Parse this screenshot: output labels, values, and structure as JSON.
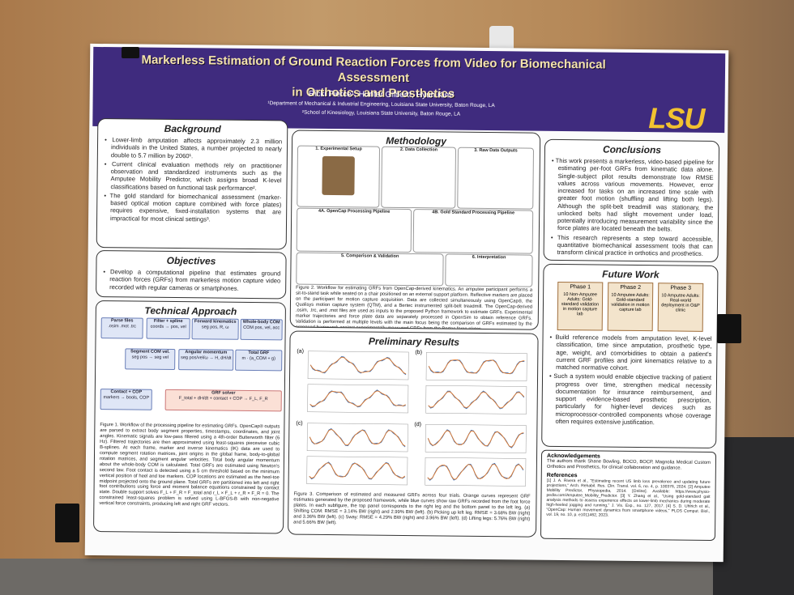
{
  "header": {
    "title_line1": "Markerless Estimation of Ground Reaction Forces from Video for Biomechanical Assessment",
    "title_line2": "in Orthotics and Prosthetics",
    "authors": "Ricki Pierce¹, Hunter Gilbert¹, Hyun Kim²",
    "affiliation1": "¹Department of Mechanical & Industrial Engineering, Louisiana State University, Baton Rouge, LA",
    "affiliation2": "²School of Kinesiology, Louisiana State University, Baton Rouge, LA",
    "logo": "LSU"
  },
  "background": {
    "heading": "Background",
    "bullets": [
      "Lower-limb amputation affects approximately 2.3 million individuals in the United States, a number projected to nearly double to 5.7 million by 2060¹.",
      "Current clinical evaluation methods rely on practitioner observation and standardized instruments such as the Amputee Mobility Predictor, which assigns broad K-level classifications based on functional task performance².",
      "The gold standard for biomechanical assessment (marker-based optical motion capture combined with force plates) requires expensive, fixed-installation systems that are impractical for most clinical settings³."
    ]
  },
  "objectives": {
    "heading": "Objectives",
    "bullets": [
      "Develop a computational pipeline that estimates ground reaction forces (GRFs) from markerless motion capture video recorded with regular cameras or smartphones."
    ]
  },
  "technical_approach": {
    "heading": "Technical Approach",
    "flow": [
      [
        "Parse files",
        ".osim .mot .trc"
      ],
      [
        "Filter + spline",
        "coords → pos, vel"
      ],
      [
        "Forward kinematics",
        "seg pos, R, ω"
      ],
      [
        "Whole-body COM",
        "COM pos, vel, acc"
      ],
      [
        "Segment COM vel.",
        "seg pos → seg vel"
      ],
      [
        "Angular momentum",
        "seg pos/vel/ω → H, dH/dt"
      ],
      [
        "Total GRF",
        "m · (a_COM + g)"
      ],
      [
        "Contact + COP",
        "markers → bools, COP"
      ],
      [
        "GRF solver",
        "F_total + dH/dt + contact + COP → F_L, F_R"
      ]
    ],
    "caption": "Figure 1. Workflow of the processing pipeline for estimating GRFs. OpenCap® outputs are parsed to extract body segment properties, timestamps, coordinates, and joint angles. Kinematic signals are low-pass filtered using a 4th-order Butterworth filter (6 Hz). Filtered trajectories are then approximated using least-squares piecewise cubic B-splines. At each frame, marker and inverse kinematics (IK) data are used to compute segment rotation matrices, joint origins in the global frame, body-to-global rotation matrices, and segment angular velocities. Total body angular momentum about the whole-body COM is calculated. Total GRFs are estimated using Newton's second law. Foot contact is detected using a 5 cm threshold based on the minimum vertical position of heel and toe markers. COP locations are estimated as the heel-toe midpoint projected onto the ground plane. Total GRFs are partitioned into left and right foot contributions using force and moment balance equations constrained by contact state. Double support solves F_L + F_R = F_total and r_L × F_L + r_R × F_R = 0. The constrained least-squares problem is solved using L-BFGS-B with non-negative vertical force constraints, producing left and right GRF vectors."
  },
  "methodology": {
    "heading": "Methodology",
    "steps": [
      "1. Experimental Setup",
      "2. Data Collection",
      "3. Raw Data Outputs",
      "4A. OpenCap Processing Pipeline",
      "4B. Gold Standard Processing Pipeline",
      "5. Comparison & Validation",
      "6. Interpretation"
    ],
    "caption": "Figure 2. Workflow for estimating GRFs from OpenCap-derived kinematics. An amputee participant performs a sit-to-stand task while seated on a chair positioned on an external support platform. Reflective markers are placed on the participant for motion capture acquisition. Data are collected simultaneously using OpenCap®, the Qualisys motion capture system (QTM), and a Bertec instrumented split-belt treadmill. The OpenCap-derived .osim, .trc, and .mot files are used as inputs to the proposed Python framework to estimate GRFs. Experimental marker trajectories and force plate data are separately processed in OpenSim to obtain reference GRFs. Validation is performed at multiple levels with the main focus being the comparison of GRFs estimated by the proposed framework against experimentally measured GRFs from the Bertec force plates."
  },
  "preliminary_results": {
    "heading": "Preliminary Results",
    "panels": [
      "(a)",
      "(b)",
      "(c)",
      "(d)"
    ],
    "caption": "Figure 3. Comparison of estimated and measured GRFs across four trials. Orange curves represent GRF estimates generated by the proposed framework, while blue curves show raw GRFs recorded from the foot force plates. In each subfigure, the top panel corresponds to the right leg and the bottom panel to the left leg. (a) Shifting COM: RMSE = 3.14% BW (right) and 2.99% BW (left). (b) Picking up left leg: RMSE = 3.68% BW (right) and 3.36% BW (left). (c) Sway: RMSE = 4.29% BW (right) and 3.96% BW (left). (d) Lifting legs: 5.76% BW (right) and 5.66% BW (left)."
  },
  "conclusions": {
    "heading": "Conclusions",
    "bullets": [
      "This work presents a markerless, video-based pipeline for estimating per-foot GRFs from kinematic data alone. Single-subject pilot results demonstrate low RMSE values across various movements. However, error increased for tasks on an increased time scale with greater foot motion (shuffling and lifting both legs). Although the split-belt treadmill was stationary, the unlocked belts had slight movement under load, potentially introducing measurement variability since the force plates are located beneath the belts.",
      "This research represents a step toward accessible, quantitative biomechanical assessment tools that can transform clinical practice in orthotics and prosthetics."
    ]
  },
  "future_work": {
    "heading": "Future Work",
    "phases": [
      {
        "label": "Phase 1",
        "text": "10 Non-Amputee Adults: Gold-standard validation in motion capture lab"
      },
      {
        "label": "Phase 2",
        "text": "10 Amputee Adults: Gold-standard validation in motion capture lab"
      },
      {
        "label": "Phase 3",
        "text": "10 Amputee Adults: Real-world deployment in O&P clinic"
      }
    ],
    "bullets": [
      "Build reference models from amputation level, K-level classification, time since amputation, prosthetic type, age, weight, and comorbidities to obtain a patient's current GRF profiles and joint kinematics relative to a matched normative cohort.",
      "Such a system would enable objective tracking of patient progress over time, strengthen medical necessity documentation for insurance reimbursement, and support evidence-based prosthetic prescription, particularly for higher-level devices such as microprocessor-controlled components whose coverage often requires extensive justification."
    ]
  },
  "acknowledgements": {
    "heading": "Acknowledgements",
    "text": "The authors thank Shane Bowling, BOCO, BOCP, Magnolia Medical Custom Orthotics and Prosthetics, for clinical collaboration and guidance."
  },
  "references": {
    "heading": "References",
    "text": "[1] J. A. Rivera et al., \"Estimating recent US limb loss prevalence and updating future projections,\" Arch. Rehabil. Res. Clin. Transl. vol. 6, no. 4, p. 100376, 2024. [2] Amputee Mobility Predictor, Physiopedia, 2014. [Online]. Available: https://www.physio-pedia.com/Amputee_Mobility_Predictor. [3] Y. Zhang et al., \"Using gold-standard gait analysis methods to assess experience effects on lower-limb mechanics during moderate high-heeled jogging and running,\" J. Vis. Exp., no. 127, 2017. [4] S. D. Uhlrich et al., \"OpenCap: Human movement dynamics from smartphone videos,\" PLOS Comput. Biol., vol. 19, no. 10, p. e1011462, 2023."
  }
}
